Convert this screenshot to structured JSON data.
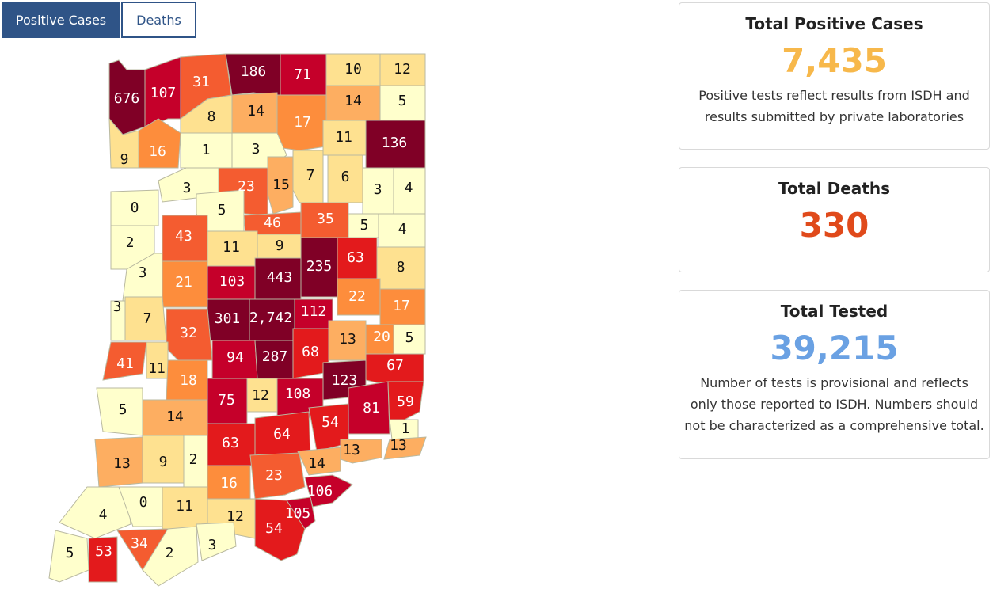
{
  "tabs": [
    {
      "label": "Positive Cases",
      "active": true
    },
    {
      "label": "Deaths",
      "active": false
    }
  ],
  "colors": {
    "tab_active": "#2f5487",
    "positive_value": "#f7b84b",
    "deaths_value": "#e04a1b",
    "tested_value": "#6aa1e3",
    "scale": [
      "#ffffcc",
      "#fee190",
      "#fdae61",
      "#fd8d3c",
      "#f45c30",
      "#e31a1c",
      "#c5002a",
      "#800026"
    ]
  },
  "map": {
    "county_values": [
      "676",
      "107",
      "31",
      "186",
      "71",
      "10",
      "12",
      "8",
      "14",
      "14",
      "5",
      "17",
      "9",
      "16",
      "1",
      "3",
      "11",
      "136",
      "3",
      "23",
      "15",
      "7",
      "6",
      "3",
      "4",
      "0",
      "5",
      "46",
      "35",
      "5",
      "4",
      "2",
      "43",
      "11",
      "9",
      "235",
      "63",
      "3",
      "103",
      "443",
      "8",
      "21",
      "22",
      "3",
      "7",
      "301",
      "2,742",
      "112",
      "17",
      "32",
      "13",
      "20",
      "5",
      "41",
      "11",
      "94",
      "287",
      "68",
      "18",
      "123",
      "67",
      "5",
      "75",
      "12",
      "108",
      "81",
      "59",
      "14",
      "54",
      "1",
      "13",
      "63",
      "64",
      "13",
      "13",
      "9",
      "2",
      "14",
      "16",
      "23",
      "106",
      "4",
      "0",
      "11",
      "12",
      "105",
      "54",
      "34",
      "5",
      "53",
      "2",
      "3"
    ]
  },
  "cards": {
    "positive": {
      "title": "Total Positive Cases",
      "value": "7,435",
      "note_line1": "Positive tests reflect results from ISDH and",
      "note_line2": "results submitted by private laboratories"
    },
    "deaths": {
      "title": "Total Deaths",
      "value": "330"
    },
    "tested": {
      "title": "Total Tested",
      "value": "39,215",
      "note_line1": "Number of tests is provisional and reflects",
      "note_line2": "only those reported to ISDH. Numbers should",
      "note_line3": "not be characterized as a comprehensive total."
    }
  }
}
